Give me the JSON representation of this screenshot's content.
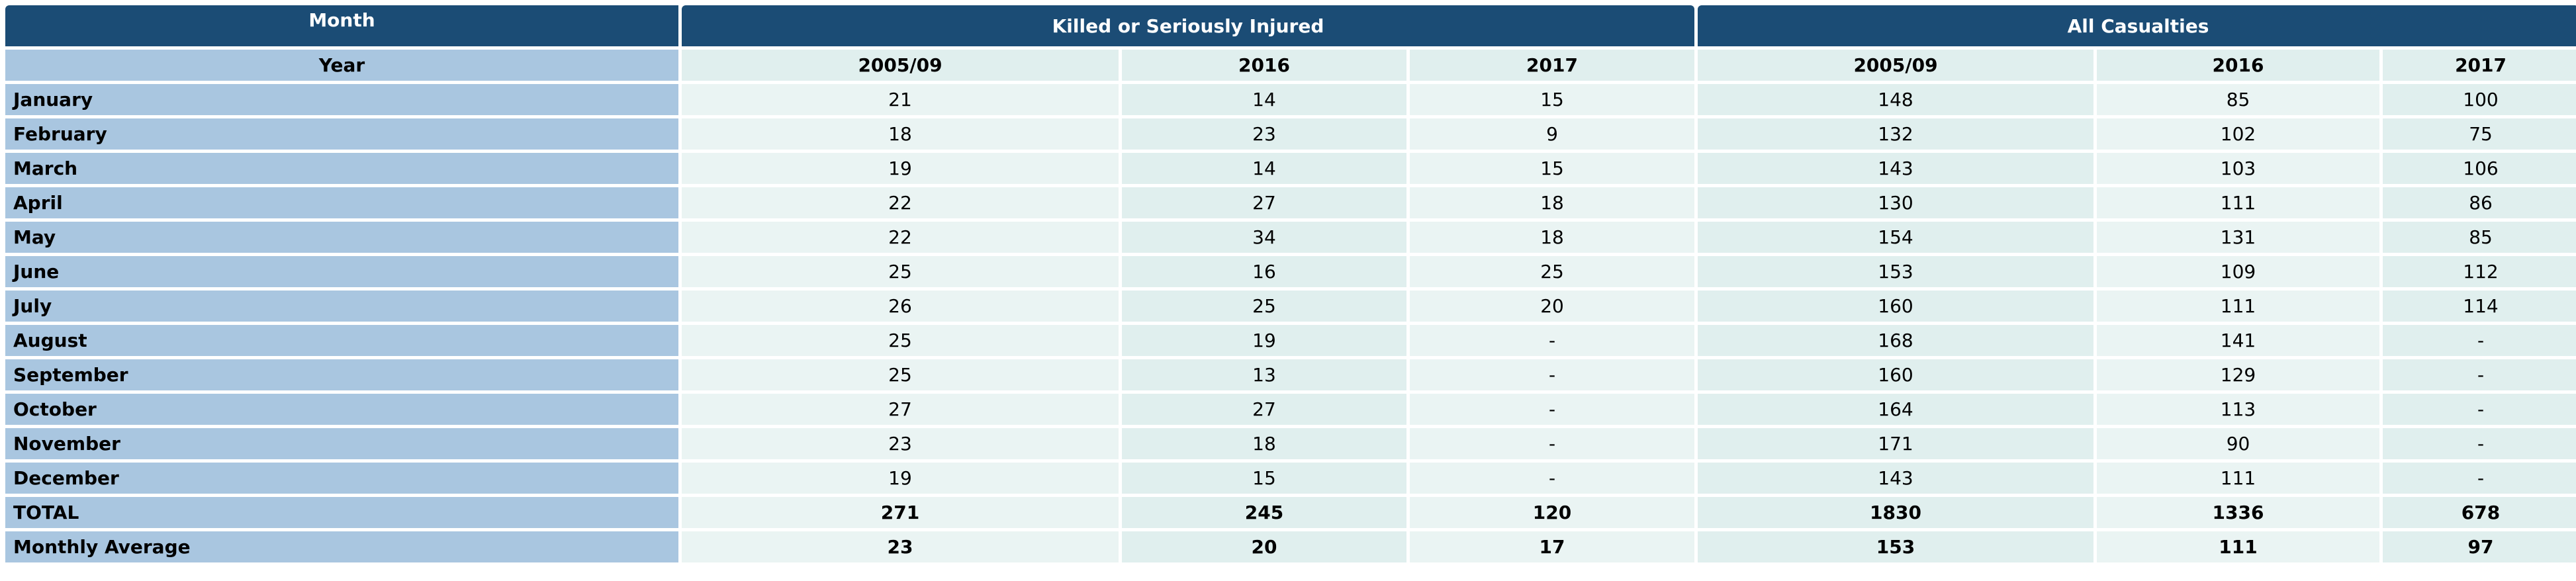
{
  "header": {
    "month_label": "Month",
    "year_label": "Year",
    "groups": [
      "Killed or Seriously Injured",
      "All Casualties"
    ],
    "years": [
      "2005/09",
      "2016",
      "2017",
      "2005/09",
      "2016",
      "2017"
    ]
  },
  "rows": [
    {
      "label": "January",
      "values": [
        "21",
        "14",
        "15",
        "148",
        "85",
        "100"
      ]
    },
    {
      "label": "February",
      "values": [
        "18",
        "23",
        "9",
        "132",
        "102",
        "75"
      ]
    },
    {
      "label": "March",
      "values": [
        "19",
        "14",
        "15",
        "143",
        "103",
        "106"
      ]
    },
    {
      "label": "April",
      "values": [
        "22",
        "27",
        "18",
        "130",
        "111",
        "86"
      ]
    },
    {
      "label": "May",
      "values": [
        "22",
        "34",
        "18",
        "154",
        "131",
        "85"
      ]
    },
    {
      "label": "June",
      "values": [
        "25",
        "16",
        "25",
        "153",
        "109",
        "112"
      ]
    },
    {
      "label": "July",
      "values": [
        "26",
        "25",
        "20",
        "160",
        "111",
        "114"
      ]
    },
    {
      "label": "August",
      "values": [
        "25",
        "19",
        "-",
        "168",
        "141",
        "-"
      ]
    },
    {
      "label": "September",
      "values": [
        "25",
        "13",
        "-",
        "160",
        "129",
        "-"
      ]
    },
    {
      "label": "October",
      "values": [
        "27",
        "27",
        "-",
        "164",
        "113",
        "-"
      ]
    },
    {
      "label": "November",
      "values": [
        "23",
        "18",
        "-",
        "171",
        "90",
        "-"
      ]
    },
    {
      "label": "December",
      "values": [
        "19",
        "15",
        "-",
        "143",
        "111",
        "-"
      ]
    }
  ],
  "total": {
    "label": "TOTAL",
    "values": [
      "271",
      "245",
      "120",
      "1830",
      "1336",
      "678"
    ]
  },
  "average": {
    "label": "Monthly Average",
    "values": [
      "23",
      "20",
      "17",
      "153",
      "111",
      "97"
    ]
  },
  "colors": {
    "header_dark": "#1b4c75",
    "label_blue": "#a9c6e0",
    "cell_light": "#eaf4f3",
    "cell_alt": "#e0efee"
  }
}
